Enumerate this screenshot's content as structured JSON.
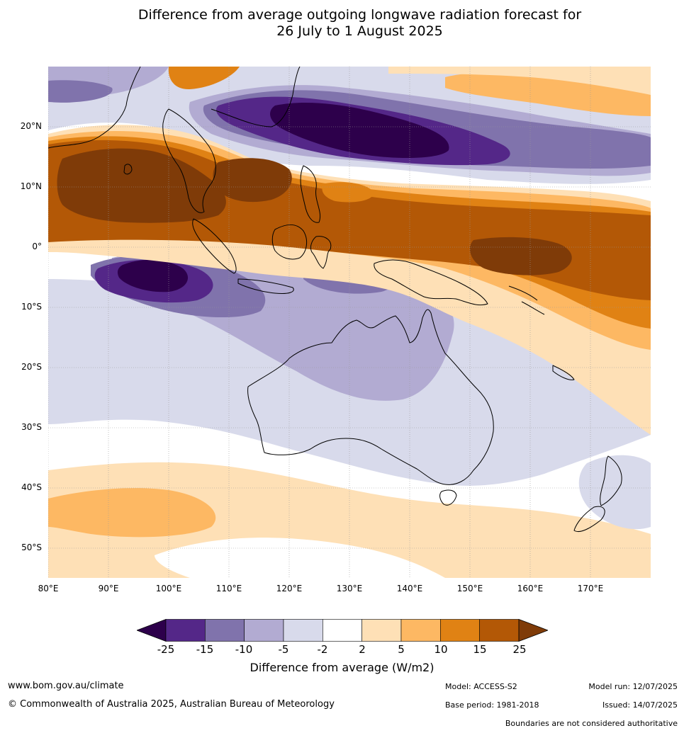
{
  "title_line1": "Difference from average outgoing longwave radiation forecast for",
  "title_line2": "26 July to 1 August 2025",
  "lat_labels": [
    "20°N",
    "10°N",
    "0°",
    "10°S",
    "20°S",
    "30°S",
    "40°S",
    "50°S"
  ],
  "lon_labels": [
    "80°E",
    "90°E",
    "100°E",
    "110°E",
    "120°E",
    "130°E",
    "140°E",
    "150°E",
    "160°E",
    "170°E"
  ],
  "legend": {
    "ticks": [
      "-25",
      "-15",
      "-10",
      "-5",
      "-2",
      "2",
      "5",
      "10",
      "15",
      "25"
    ],
    "colors": [
      "#2d004b",
      "#542788",
      "#8073ac",
      "#b2abd2",
      "#d8daeb",
      "#ffffff",
      "#fee0b6",
      "#fdb863",
      "#e08214",
      "#b35806",
      "#7f3b08"
    ],
    "title": "Difference from average (W/m2)"
  },
  "footer": {
    "website": "www.bom.gov.au/climate",
    "copyright": "© Commonwealth of Australia 2025, Australian Bureau of Meteorology",
    "model": "Model: ACCESS-S2",
    "base_period": "Base period: 1981-2018",
    "model_run": "Model run: 12/07/2025",
    "issued": "Issued: 14/07/2025",
    "disclaimer": "Boundaries are not considered authoritative"
  }
}
